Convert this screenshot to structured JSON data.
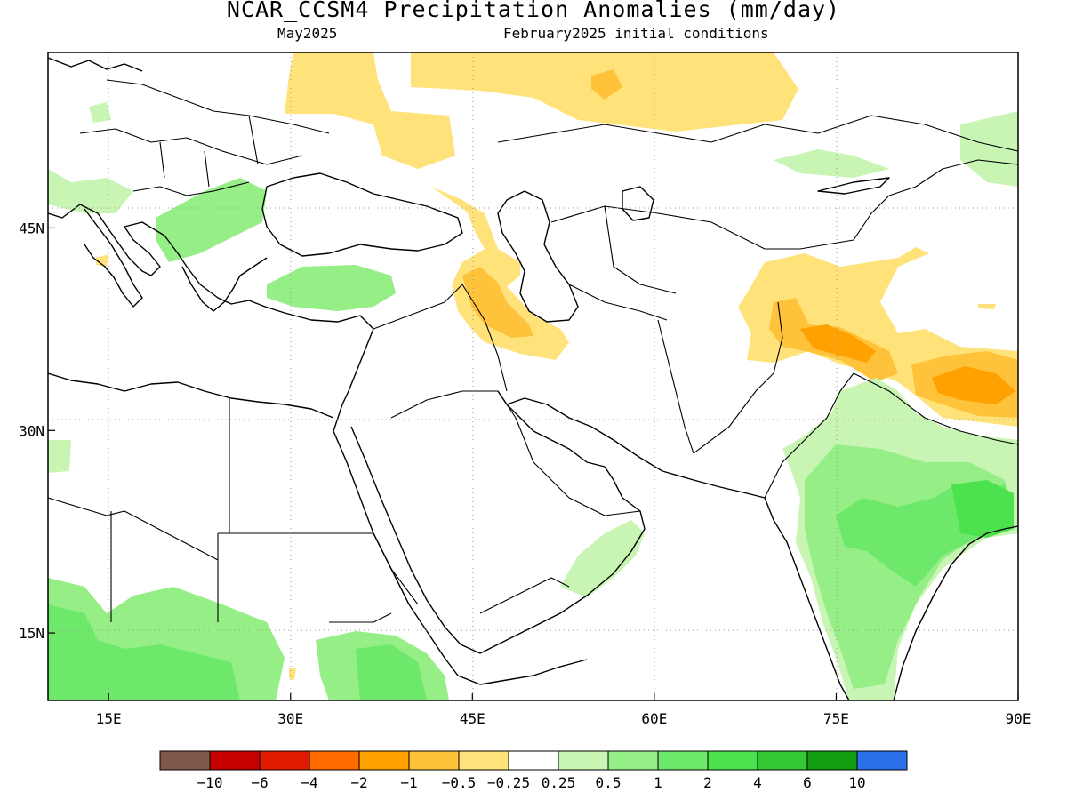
{
  "header": {
    "title": "NCAR_CCSM4 Precipitation Anomalies (mm/day)",
    "valid_month": "May2025",
    "init": "February2025 initial conditions"
  },
  "map": {
    "lon_range": [
      10,
      90
    ],
    "lat_range": [
      10,
      58
    ],
    "lon_ticks": [
      {
        "value": 15,
        "label": "15E"
      },
      {
        "value": 30,
        "label": "30E"
      },
      {
        "value": 45,
        "label": "45E"
      },
      {
        "value": 60,
        "label": "60E"
      },
      {
        "value": 75,
        "label": "75E"
      },
      {
        "value": 90,
        "label": "90E"
      }
    ],
    "lat_ticks": [
      {
        "value": 45,
        "label": "45N"
      },
      {
        "value": 30,
        "label": "30N"
      },
      {
        "value": 15,
        "label": "15N"
      }
    ],
    "grid": "dotted"
  },
  "colorbar": {
    "colors": [
      "#7f5a4a",
      "#c40000",
      "#e21b00",
      "#ff6a00",
      "#ffa100",
      "#ffc23b",
      "#ffe37a",
      "#ffffff",
      "#c8f5b4",
      "#96ee87",
      "#6de86a",
      "#4be24e",
      "#34c834",
      "#12a012",
      "#2a6ee8"
    ],
    "labels": [
      "−10",
      "−6",
      "−4",
      "−2",
      "−1",
      "−0.5",
      "−0.25",
      "0.25",
      "0.5",
      "1",
      "2",
      "4",
      "6",
      "10"
    ]
  },
  "anomaly_colors": {
    "dry_light": "#ffe37a",
    "dry_mid": "#ffc23b",
    "dry_strong": "#ffa100",
    "wet_light": "#c8f5b4",
    "wet_mid": "#96ee87",
    "wet_strong": "#6de86a",
    "wet_heavy": "#4be24e"
  }
}
